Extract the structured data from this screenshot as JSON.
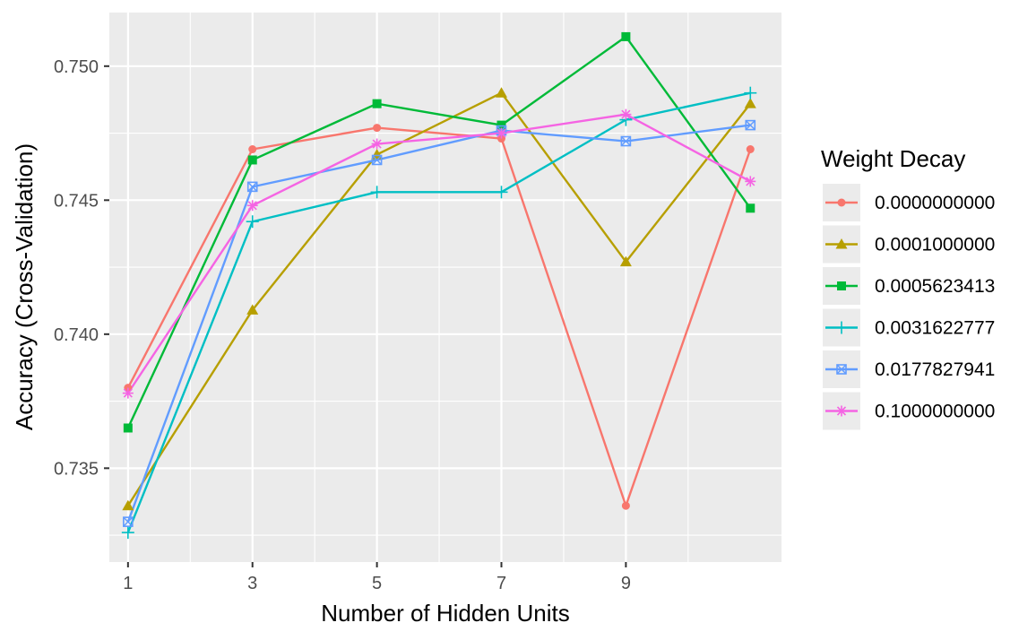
{
  "chart_data": {
    "type": "line",
    "xlabel": "Number of Hidden Units",
    "ylabel": "Accuracy (Cross-Validation)",
    "x": [
      1,
      3,
      5,
      7,
      9,
      11
    ],
    "x_ticks": [
      "1",
      "3",
      "5",
      "7",
      "9"
    ],
    "y_ticks": [
      "0.735",
      "0.740",
      "0.745",
      "0.750"
    ],
    "xlim": [
      0.7,
      11.5
    ],
    "ylim": [
      0.7315,
      0.752
    ],
    "grid": true,
    "legend": {
      "title": "Weight Decay",
      "placement": "right"
    },
    "series": [
      {
        "name": "0.0000000000",
        "color": "#F8766D",
        "shape": "circle",
        "values": [
          0.738,
          0.7469,
          0.7477,
          0.7473,
          0.7336,
          0.7469
        ]
      },
      {
        "name": "0.0001000000",
        "color": "#B79F00",
        "shape": "triangle",
        "values": [
          0.7336,
          0.7409,
          0.7467,
          0.749,
          0.7427,
          0.7486
        ]
      },
      {
        "name": "0.0005623413",
        "color": "#00BA38",
        "shape": "square",
        "values": [
          0.7365,
          0.7465,
          0.7486,
          0.7478,
          0.7511,
          0.7447
        ]
      },
      {
        "name": "0.0031622777",
        "color": "#00BFC4",
        "shape": "plus",
        "values": [
          0.7326,
          0.7442,
          0.7453,
          0.7453,
          0.748,
          0.749
        ]
      },
      {
        "name": "0.0177827941",
        "color": "#619CFF",
        "shape": "square-cross",
        "values": [
          0.733,
          0.7455,
          0.7465,
          0.7476,
          0.7472,
          0.7478
        ]
      },
      {
        "name": "0.1000000000",
        "color": "#F564E3",
        "shape": "asterisk",
        "values": [
          0.7378,
          0.7448,
          0.7471,
          0.7475,
          0.7482,
          0.7457
        ]
      }
    ]
  }
}
